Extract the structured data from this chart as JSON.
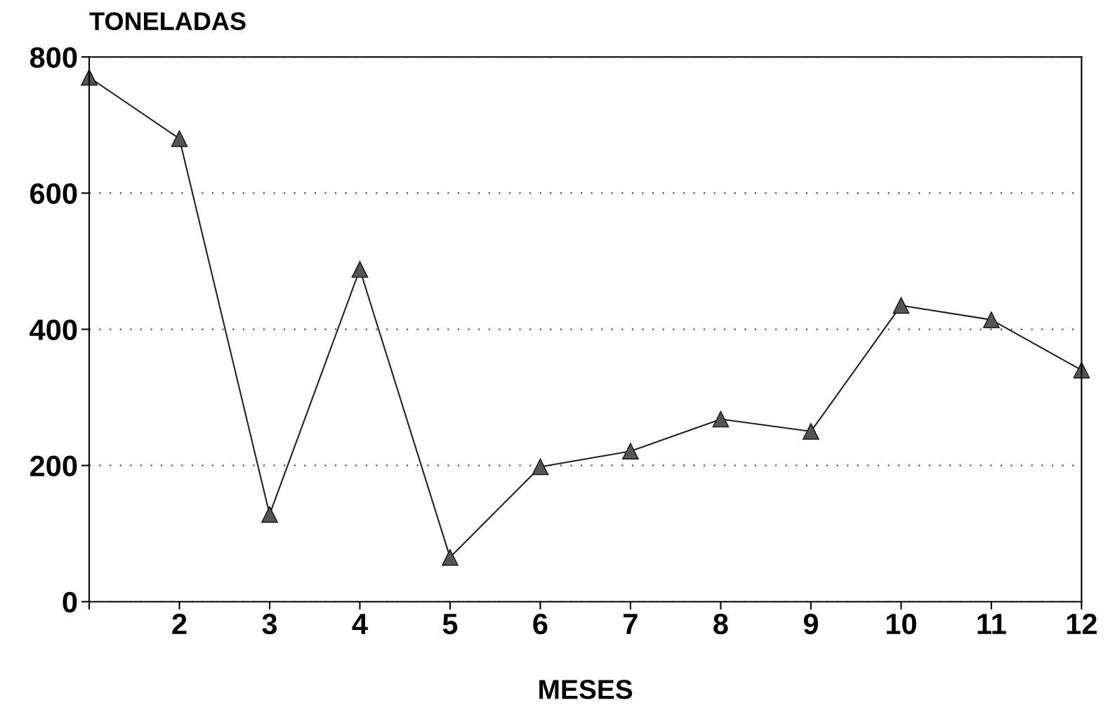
{
  "chart_data": {
    "type": "line",
    "ylabel": "TONELADAS",
    "xlabel": "MESES",
    "x": [
      1,
      2,
      3,
      4,
      5,
      6,
      7,
      8,
      9,
      10,
      11,
      12
    ],
    "series": [
      {
        "color": "#222222",
        "values": [
          770,
          680,
          128,
          488,
          65,
          198,
          221,
          268,
          250,
          435,
          414,
          340
        ]
      }
    ],
    "xlim": [
      1,
      12
    ],
    "xticks": [
      {
        "value": 1,
        "label": null
      },
      2,
      3,
      4,
      5,
      6,
      7,
      8,
      9,
      10,
      11,
      12
    ],
    "ylim": [
      0,
      800
    ],
    "yticks": [
      0,
      200,
      400,
      600,
      800
    ],
    "grid": "y",
    "marker": "triangle",
    "line_style": "solid"
  }
}
